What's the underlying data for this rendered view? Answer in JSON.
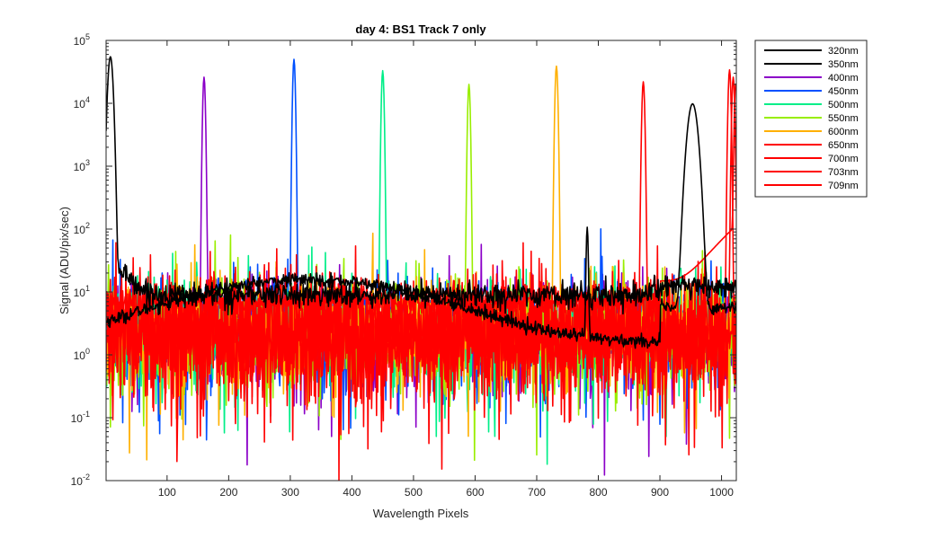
{
  "chart_data": {
    "type": "line",
    "title": "day 4: BS1   Track 7 only",
    "xlabel": "Wavelength Pixels",
    "ylabel": "Signal (ADU/pix/sec)",
    "xlim": [
      1,
      1024
    ],
    "ylim": [
      0.01,
      100000
    ],
    "yscale": "log",
    "x_ticks": [
      100,
      200,
      300,
      400,
      500,
      600,
      700,
      800,
      900,
      1000
    ],
    "y_ticks": [
      {
        "value": 0.01,
        "base": "10",
        "exp": "-2"
      },
      {
        "value": 0.1,
        "base": "10",
        "exp": "-1"
      },
      {
        "value": 1,
        "base": "10",
        "exp": "0"
      },
      {
        "value": 10,
        "base": "10",
        "exp": "1"
      },
      {
        "value": 100,
        "base": "10",
        "exp": "2"
      },
      {
        "value": 1000,
        "base": "10",
        "exp": "3"
      },
      {
        "value": 10000,
        "base": "10",
        "exp": "4"
      },
      {
        "value": 100000,
        "base": "10",
        "exp": "5"
      }
    ],
    "grid": false,
    "legend_position": "outside-top-right",
    "series": [
      {
        "name": "320nm",
        "color": "#000000",
        "peaks": [
          {
            "x": 953,
            "y": 9800,
            "width": 6
          },
          {
            "x": 782,
            "y": 105,
            "width": 1.2
          }
        ]
      },
      {
        "name": "350nm",
        "color": "#000000",
        "peaks": [
          {
            "x": 8,
            "y": 55000,
            "width": 3
          }
        ]
      },
      {
        "name": "400nm",
        "color": "#8B00C8",
        "peaks": [
          {
            "x": 160,
            "y": 26000,
            "width": 1.5
          }
        ]
      },
      {
        "name": "450nm",
        "color": "#0050FF",
        "peaks": [
          {
            "x": 306,
            "y": 50000,
            "width": 1.5
          }
        ]
      },
      {
        "name": "500nm",
        "color": "#00EE88",
        "peaks": [
          {
            "x": 450,
            "y": 33000,
            "width": 1.5
          }
        ]
      },
      {
        "name": "550nm",
        "color": "#99EE00",
        "peaks": [
          {
            "x": 590,
            "y": 20000,
            "width": 1.5
          }
        ]
      },
      {
        "name": "600nm",
        "color": "#FFB000",
        "peaks": [
          {
            "x": 732,
            "y": 39000,
            "width": 1.6
          }
        ]
      },
      {
        "name": "650nm",
        "color": "#FF0000",
        "peaks": [
          {
            "x": 873,
            "y": 22000,
            "width": 1.6
          }
        ]
      },
      {
        "name": "700nm",
        "color": "#FF0000",
        "peaks": [
          {
            "x": 1013,
            "y": 34000,
            "width": 1.6
          }
        ]
      },
      {
        "name": "703nm",
        "color": "#FF0000",
        "peaks": [
          {
            "x": 1019,
            "y": 26000,
            "width": 1.6
          }
        ]
      },
      {
        "name": "709nm",
        "color": "#FF0000",
        "peaks": [
          {
            "x": 1023,
            "y": 20000,
            "width": 1.5
          }
        ]
      }
    ]
  }
}
